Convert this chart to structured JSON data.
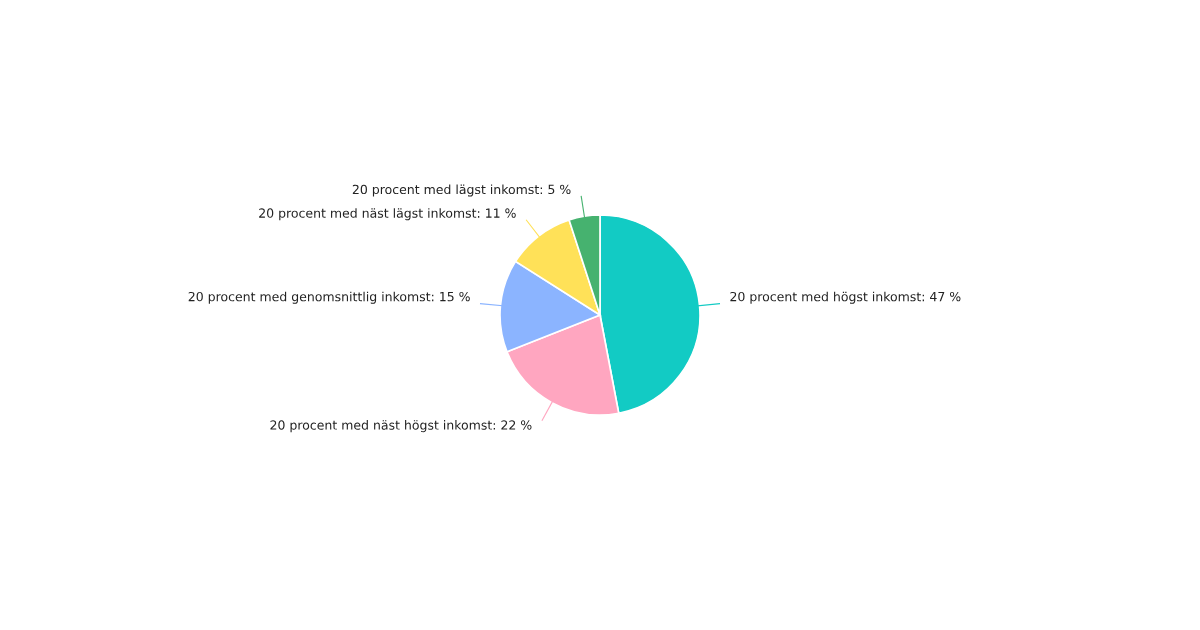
{
  "chart_data": {
    "type": "pie",
    "categories": [
      "20 procent med högst inkomst",
      "20 procent med näst högst inkomst",
      "20 procent med genomsnittlig inkomst",
      "20 procent med näst lägst inkomst",
      "20 procent med lägst inkomst"
    ],
    "values": [
      47,
      22,
      15,
      11,
      5
    ],
    "colors": [
      "#12cbc4",
      "#ffa6c0",
      "#8bb4ff",
      "#ffe158",
      "#46b26f"
    ],
    "value_labels": [
      "47 %",
      "22 %",
      "15 %",
      "11 %",
      "5 %"
    ]
  }
}
